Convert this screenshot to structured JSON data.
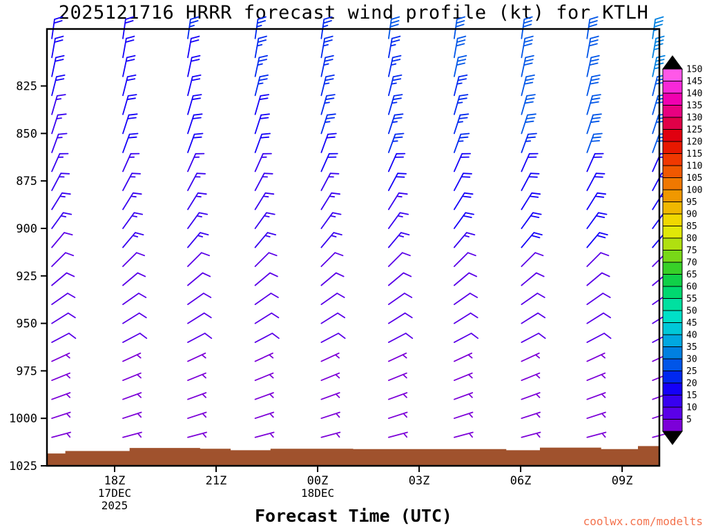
{
  "title": "2025121716 HRRR forecast wind profile (kt) for KTLH",
  "watermark": "coolwx.com/modelts",
  "colors": {
    "background": "#FFFFFF",
    "axis": "#000000",
    "terrain": "#A0522D",
    "watermark": "#F4724D"
  },
  "chart_data": {
    "type": "wind-barb-profile",
    "title": "2025121716 HRRR forecast wind profile (kt) for KTLH",
    "x_axis": {
      "label": "Forecast Time (UTC)",
      "range_hours": [
        16,
        34.1
      ],
      "ticks": [
        {
          "hour": 18,
          "label": "18Z",
          "sub": [
            "17DEC",
            "2025"
          ]
        },
        {
          "hour": 21,
          "label": "21Z",
          "sub": []
        },
        {
          "hour": 24,
          "label": "00Z",
          "sub": [
            "18DEC"
          ]
        },
        {
          "hour": 27,
          "label": "03Z",
          "sub": []
        },
        {
          "hour": 30,
          "label": "06Z",
          "sub": []
        },
        {
          "hour": 33,
          "label": "09Z",
          "sub": []
        }
      ]
    },
    "y_axis": {
      "range": [
        795,
        1025
      ],
      "ticks": [
        825,
        850,
        875,
        900,
        925,
        950,
        975,
        1000,
        1025
      ]
    },
    "colorbar": {
      "values": [
        5,
        10,
        15,
        20,
        25,
        30,
        35,
        40,
        45,
        50,
        55,
        60,
        65,
        70,
        75,
        80,
        85,
        90,
        95,
        100,
        105,
        110,
        115,
        120,
        125,
        130,
        135,
        140,
        145,
        150
      ],
      "colors": [
        "#7C00D8",
        "#5A00E8",
        "#3800F0",
        "#1400F8",
        "#0028F0",
        "#0055E8",
        "#0080E0",
        "#00A8E0",
        "#00C8D8",
        "#00E0C8",
        "#00E0A0",
        "#00D870",
        "#10D048",
        "#38D028",
        "#78D818",
        "#B0E010",
        "#E0E808",
        "#F0D800",
        "#F0B800",
        "#F09800",
        "#F07800",
        "#F05800",
        "#F03800",
        "#E81800",
        "#E00010",
        "#E00048",
        "#E80080",
        "#F000B0",
        "#F828D8",
        "#FF58E8"
      ]
    },
    "terrain": {
      "color": "#A0522D",
      "base_pressure": 1025,
      "steps": [
        [
          0,
          1018.5
        ],
        [
          0.03,
          1017.2
        ],
        [
          0.135,
          1015.6
        ],
        [
          0.25,
          1016.0
        ],
        [
          0.3,
          1016.8
        ],
        [
          0.365,
          1016.0
        ],
        [
          0.5,
          1016.2
        ],
        [
          0.75,
          1016.8
        ],
        [
          0.805,
          1015.4
        ],
        [
          0.905,
          1016.2
        ],
        [
          0.965,
          1014.6
        ]
      ]
    },
    "barb_columns": [
      {
        "x_frac": 0.008,
        "barbs": [
          [
            800,
            22,
            8
          ],
          [
            810,
            21,
            10
          ],
          [
            820,
            21,
            12
          ],
          [
            830,
            20,
            14
          ],
          [
            840,
            19,
            16
          ],
          [
            850,
            19,
            18
          ],
          [
            860,
            18,
            20
          ],
          [
            870,
            17,
            24
          ],
          [
            880,
            16,
            28
          ],
          [
            890,
            15,
            32
          ],
          [
            900,
            15,
            36
          ],
          [
            910,
            14,
            40
          ],
          [
            920,
            13,
            45
          ],
          [
            930,
            12,
            50
          ],
          [
            940,
            11,
            55
          ],
          [
            950,
            10,
            58
          ],
          [
            960,
            10,
            62
          ],
          [
            970,
            9,
            65
          ],
          [
            980,
            8,
            68
          ],
          [
            990,
            7,
            70
          ],
          [
            1000,
            6,
            72
          ],
          [
            1010,
            5,
            75
          ]
        ]
      },
      {
        "x_frac": 0.124,
        "barbs": [
          [
            800,
            24,
            8
          ],
          [
            810,
            23,
            10
          ],
          [
            820,
            23,
            12
          ],
          [
            830,
            22,
            14
          ],
          [
            840,
            21,
            16
          ],
          [
            850,
            21,
            18
          ],
          [
            860,
            20,
            20
          ],
          [
            870,
            18,
            24
          ],
          [
            880,
            17,
            28
          ],
          [
            890,
            16,
            32
          ],
          [
            900,
            16,
            36
          ],
          [
            910,
            15,
            40
          ],
          [
            920,
            13,
            45
          ],
          [
            930,
            12,
            50
          ],
          [
            940,
            11,
            55
          ],
          [
            950,
            10,
            58
          ],
          [
            960,
            10,
            62
          ],
          [
            970,
            9,
            65
          ],
          [
            980,
            8,
            68
          ],
          [
            990,
            7,
            70
          ],
          [
            1000,
            6,
            72
          ],
          [
            1010,
            5,
            75
          ]
        ]
      },
      {
        "x_frac": 0.23,
        "barbs": [
          [
            800,
            25,
            8
          ],
          [
            810,
            24,
            10
          ],
          [
            820,
            24,
            12
          ],
          [
            830,
            23,
            14
          ],
          [
            840,
            22,
            16
          ],
          [
            850,
            22,
            18
          ],
          [
            860,
            21,
            20
          ],
          [
            870,
            19,
            24
          ],
          [
            880,
            18,
            28
          ],
          [
            890,
            17,
            32
          ],
          [
            900,
            17,
            36
          ],
          [
            910,
            16,
            40
          ],
          [
            920,
            13,
            45
          ],
          [
            930,
            12,
            50
          ],
          [
            940,
            11,
            55
          ],
          [
            950,
            10,
            58
          ],
          [
            960,
            10,
            62
          ],
          [
            970,
            9,
            65
          ],
          [
            980,
            8,
            68
          ],
          [
            990,
            7,
            70
          ],
          [
            1000,
            6,
            72
          ],
          [
            1010,
            5,
            75
          ]
        ]
      },
      {
        "x_frac": 0.34,
        "barbs": [
          [
            800,
            27,
            8
          ],
          [
            810,
            26,
            10
          ],
          [
            820,
            26,
            12
          ],
          [
            830,
            25,
            14
          ],
          [
            840,
            24,
            16
          ],
          [
            850,
            24,
            18
          ],
          [
            860,
            23,
            20
          ],
          [
            870,
            19,
            24
          ],
          [
            880,
            18,
            28
          ],
          [
            890,
            17,
            32
          ],
          [
            900,
            17,
            36
          ],
          [
            910,
            16,
            40
          ],
          [
            920,
            13,
            45
          ],
          [
            930,
            12,
            50
          ],
          [
            940,
            11,
            55
          ],
          [
            950,
            10,
            58
          ],
          [
            960,
            10,
            62
          ],
          [
            970,
            9,
            65
          ],
          [
            980,
            8,
            68
          ],
          [
            990,
            7,
            70
          ],
          [
            1000,
            6,
            72
          ],
          [
            1010,
            5,
            75
          ]
        ]
      },
      {
        "x_frac": 0.448,
        "barbs": [
          [
            800,
            28,
            8
          ],
          [
            810,
            27,
            10
          ],
          [
            820,
            27,
            12
          ],
          [
            830,
            26,
            14
          ],
          [
            840,
            25,
            16
          ],
          [
            850,
            25,
            18
          ],
          [
            860,
            24,
            20
          ],
          [
            870,
            20,
            24
          ],
          [
            880,
            19,
            28
          ],
          [
            890,
            18,
            32
          ],
          [
            900,
            18,
            36
          ],
          [
            910,
            17,
            40
          ],
          [
            920,
            13,
            45
          ],
          [
            930,
            12,
            50
          ],
          [
            940,
            11,
            55
          ],
          [
            950,
            10,
            58
          ],
          [
            960,
            10,
            62
          ],
          [
            970,
            9,
            65
          ],
          [
            980,
            8,
            68
          ],
          [
            990,
            7,
            70
          ],
          [
            1000,
            6,
            72
          ],
          [
            1010,
            5,
            75
          ]
        ]
      },
      {
        "x_frac": 0.558,
        "barbs": [
          [
            800,
            30,
            8
          ],
          [
            810,
            29,
            10
          ],
          [
            820,
            29,
            12
          ],
          [
            830,
            28,
            14
          ],
          [
            840,
            27,
            16
          ],
          [
            850,
            27,
            18
          ],
          [
            860,
            26,
            20
          ],
          [
            870,
            21,
            24
          ],
          [
            880,
            20,
            28
          ],
          [
            890,
            19,
            32
          ],
          [
            900,
            19,
            36
          ],
          [
            910,
            18,
            40
          ],
          [
            920,
            13,
            45
          ],
          [
            930,
            12,
            50
          ],
          [
            940,
            11,
            55
          ],
          [
            950,
            10,
            58
          ],
          [
            960,
            10,
            62
          ],
          [
            970,
            9,
            65
          ],
          [
            980,
            8,
            68
          ],
          [
            990,
            7,
            70
          ],
          [
            1000,
            6,
            72
          ],
          [
            1010,
            5,
            75
          ]
        ]
      },
      {
        "x_frac": 0.665,
        "barbs": [
          [
            800,
            31,
            8
          ],
          [
            810,
            30,
            10
          ],
          [
            820,
            30,
            12
          ],
          [
            830,
            29,
            14
          ],
          [
            840,
            28,
            16
          ],
          [
            850,
            28,
            18
          ],
          [
            860,
            27,
            20
          ],
          [
            870,
            22,
            24
          ],
          [
            880,
            21,
            28
          ],
          [
            890,
            20,
            32
          ],
          [
            900,
            20,
            36
          ],
          [
            910,
            19,
            40
          ],
          [
            920,
            13,
            45
          ],
          [
            930,
            12,
            50
          ],
          [
            940,
            11,
            55
          ],
          [
            950,
            10,
            58
          ],
          [
            960,
            10,
            62
          ],
          [
            970,
            9,
            65
          ],
          [
            980,
            8,
            68
          ],
          [
            990,
            7,
            70
          ],
          [
            1000,
            6,
            72
          ],
          [
            1010,
            5,
            75
          ]
        ]
      },
      {
        "x_frac": 0.775,
        "barbs": [
          [
            800,
            33,
            8
          ],
          [
            810,
            32,
            10
          ],
          [
            820,
            32,
            12
          ],
          [
            830,
            31,
            14
          ],
          [
            840,
            30,
            16
          ],
          [
            850,
            30,
            18
          ],
          [
            860,
            29,
            20
          ],
          [
            870,
            23,
            24
          ],
          [
            880,
            22,
            28
          ],
          [
            890,
            21,
            32
          ],
          [
            900,
            21,
            36
          ],
          [
            910,
            20,
            40
          ],
          [
            920,
            13,
            45
          ],
          [
            930,
            12,
            50
          ],
          [
            940,
            11,
            55
          ],
          [
            950,
            10,
            58
          ],
          [
            960,
            10,
            62
          ],
          [
            970,
            9,
            65
          ],
          [
            980,
            8,
            68
          ],
          [
            990,
            7,
            70
          ],
          [
            1000,
            6,
            72
          ],
          [
            1010,
            5,
            75
          ]
        ]
      },
      {
        "x_frac": 0.882,
        "barbs": [
          [
            800,
            34,
            8
          ],
          [
            810,
            33,
            10
          ],
          [
            820,
            33,
            12
          ],
          [
            830,
            32,
            14
          ],
          [
            840,
            31,
            16
          ],
          [
            850,
            31,
            18
          ],
          [
            860,
            30,
            20
          ],
          [
            870,
            23,
            24
          ],
          [
            880,
            22,
            28
          ],
          [
            890,
            21,
            32
          ],
          [
            900,
            21,
            36
          ],
          [
            910,
            20,
            40
          ],
          [
            920,
            13,
            45
          ],
          [
            930,
            12,
            50
          ],
          [
            940,
            11,
            55
          ],
          [
            950,
            10,
            58
          ],
          [
            960,
            10,
            62
          ],
          [
            970,
            9,
            65
          ],
          [
            980,
            8,
            68
          ],
          [
            990,
            7,
            70
          ],
          [
            1000,
            6,
            72
          ],
          [
            1010,
            5,
            75
          ]
        ]
      },
      {
        "x_frac": 0.989,
        "barbs": [
          [
            800,
            36,
            8
          ],
          [
            810,
            35,
            10
          ],
          [
            820,
            35,
            12
          ],
          [
            830,
            34,
            14
          ],
          [
            840,
            33,
            16
          ],
          [
            850,
            33,
            18
          ],
          [
            860,
            32,
            20
          ],
          [
            870,
            24,
            24
          ],
          [
            880,
            23,
            28
          ],
          [
            890,
            22,
            32
          ],
          [
            900,
            22,
            36
          ],
          [
            910,
            21,
            40
          ],
          [
            920,
            13,
            45
          ],
          [
            930,
            12,
            50
          ],
          [
            940,
            11,
            55
          ],
          [
            950,
            10,
            58
          ],
          [
            960,
            10,
            62
          ],
          [
            970,
            9,
            65
          ],
          [
            980,
            8,
            68
          ],
          [
            990,
            7,
            70
          ],
          [
            1000,
            6,
            72
          ],
          [
            1010,
            5,
            75
          ]
        ]
      }
    ]
  }
}
